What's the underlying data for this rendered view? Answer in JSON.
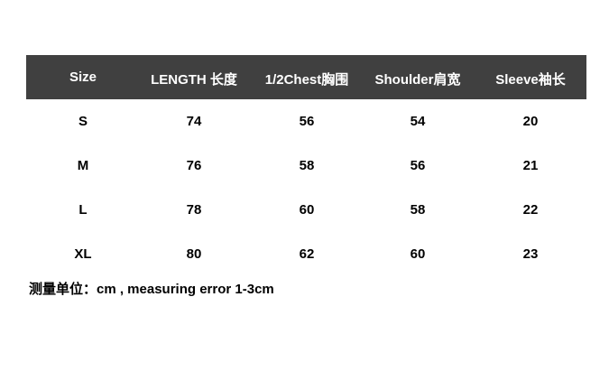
{
  "table": {
    "header_color": "#404040",
    "columns": [
      "Size",
      "LENGTH 长度",
      "1/2Chest胸围",
      "Shoulder肩宽",
      "Sleeve袖长"
    ],
    "rows": [
      [
        "S",
        "74",
        "56",
        "54",
        "20"
      ],
      [
        "M",
        "76",
        "58",
        "56",
        "21"
      ],
      [
        "L",
        "78",
        "60",
        "58",
        "22"
      ],
      [
        "XL",
        "80",
        "62",
        "60",
        "23"
      ]
    ]
  },
  "note": "测量单位：cm , measuring error 1-3cm"
}
